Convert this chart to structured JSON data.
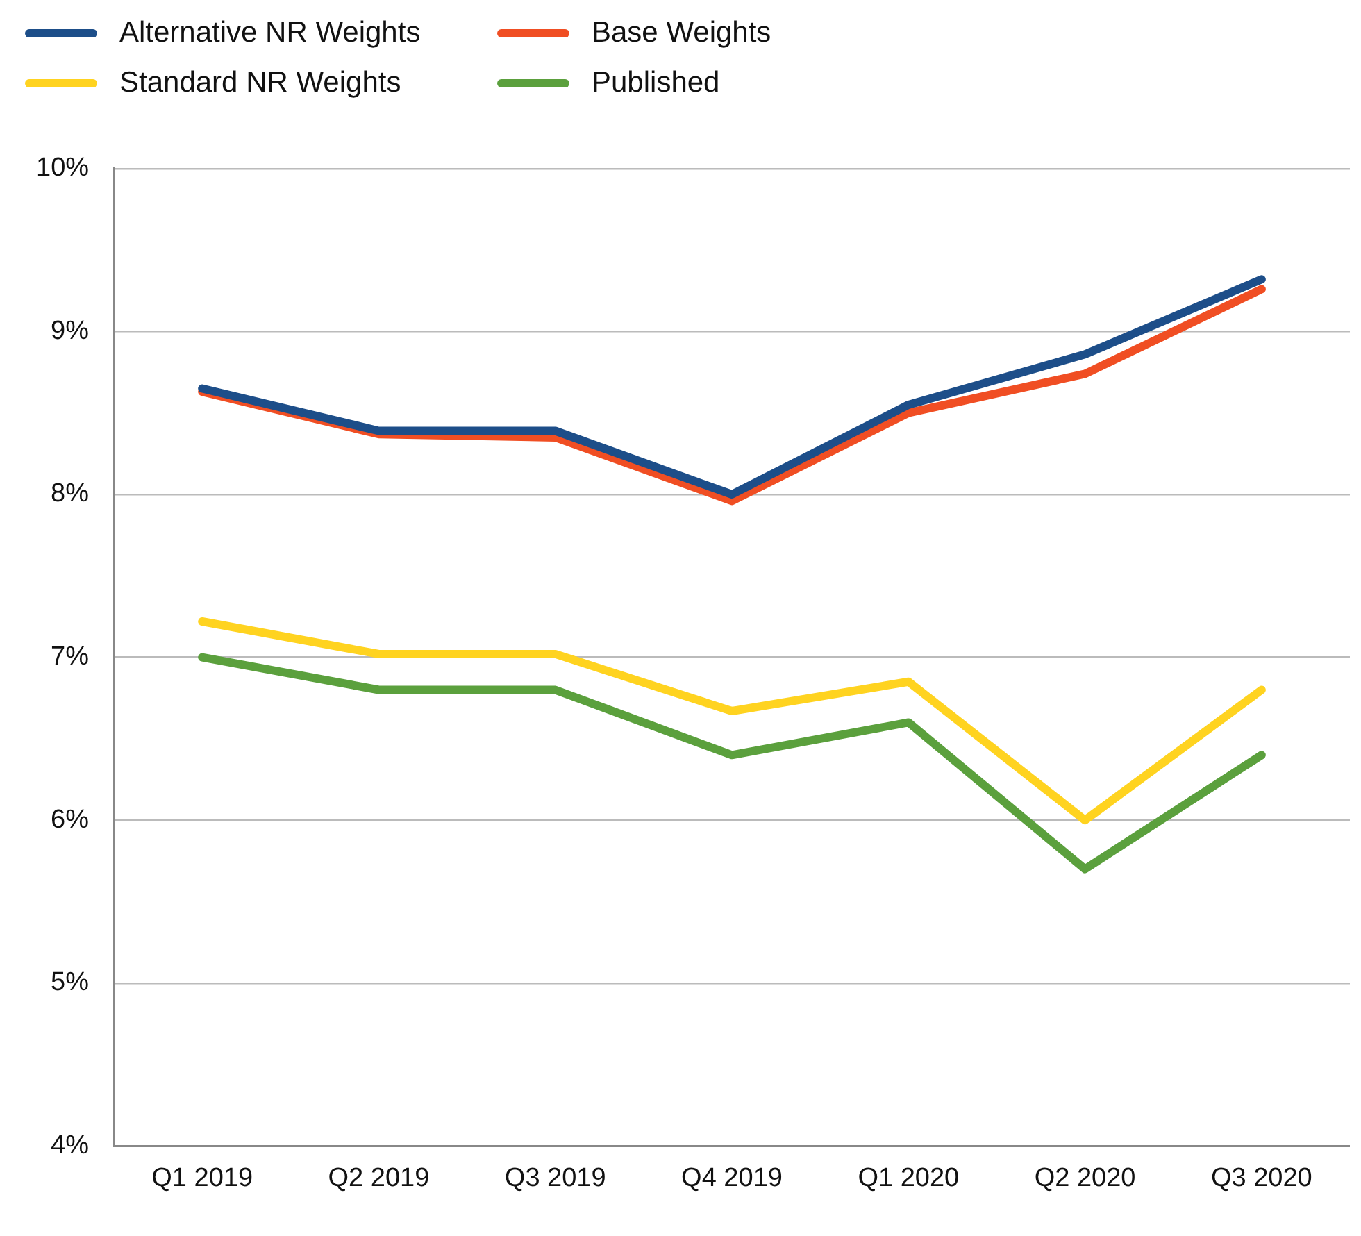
{
  "chart_data": {
    "type": "line",
    "categories": [
      "Q1 2019",
      "Q2 2019",
      "Q3 2019",
      "Q4 2019",
      "Q1 2020",
      "Q2 2020",
      "Q3 2020"
    ],
    "series": [
      {
        "name": "Alternative NR Weights",
        "color": "#1d4e89",
        "values": [
          8.65,
          8.39,
          8.39,
          8.0,
          8.55,
          8.86,
          9.32
        ]
      },
      {
        "name": "Base Weights",
        "color": "#f04e23",
        "values": [
          8.63,
          8.37,
          8.35,
          7.96,
          8.5,
          8.74,
          9.26
        ]
      },
      {
        "name": "Standard NR Weights",
        "color": "#ffd320",
        "values": [
          7.22,
          7.02,
          7.02,
          6.67,
          6.85,
          6.0,
          6.8
        ]
      },
      {
        "name": "Published",
        "color": "#5ba03d",
        "values": [
          7.0,
          6.8,
          6.8,
          6.4,
          6.6,
          5.7,
          6.4
        ]
      }
    ],
    "ylim": [
      4,
      10
    ],
    "yticks": [
      {
        "value": 4,
        "label": "4%"
      },
      {
        "value": 5,
        "label": "5%"
      },
      {
        "value": 6,
        "label": "6%"
      },
      {
        "value": 7,
        "label": "7%"
      },
      {
        "value": 8,
        "label": "8%"
      },
      {
        "value": 9,
        "label": "9%"
      },
      {
        "value": 10,
        "label": "10%"
      }
    ],
    "grid": "y",
    "legend": "top left",
    "marker": "none",
    "line_style": "solid"
  }
}
